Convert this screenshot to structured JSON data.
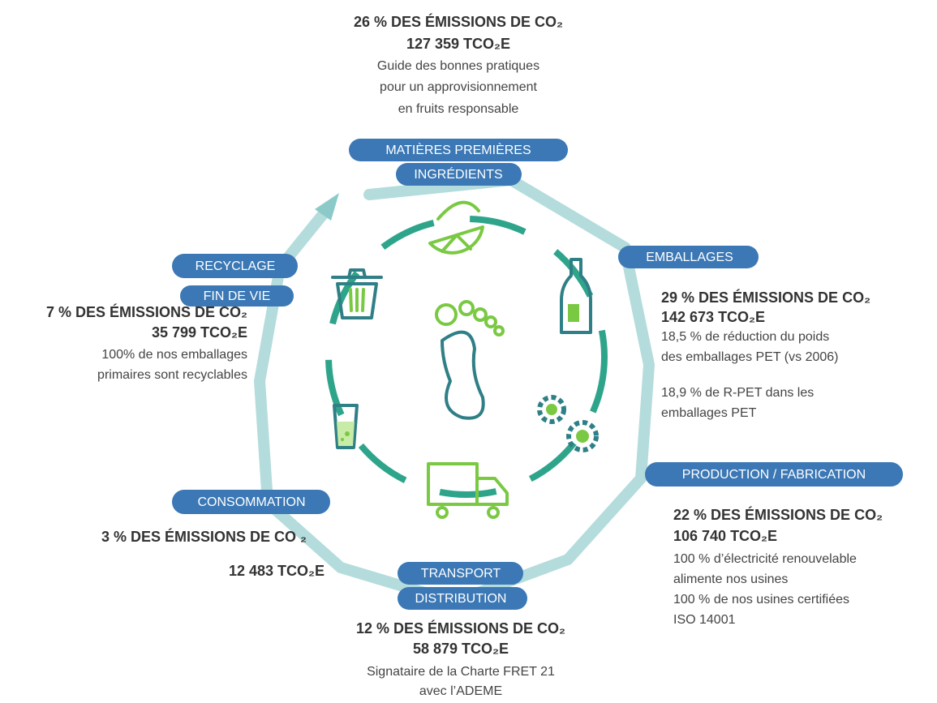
{
  "stages": [
    {
      "label": [
        "MATIÈRES PREMIÈRES",
        "INGRÉDIENTS"
      ],
      "share": "26 % DES ÉMISSIONS DE CO₂",
      "tonnes": "127 359 TCO₂E",
      "notes": [
        "Guide des bonnes pratiques",
        "pour un approvisionnement",
        "en fruits responsable"
      ]
    },
    {
      "label": [
        "EMBALLAGES"
      ],
      "share": "29 % DES ÉMISSIONS DE CO₂",
      "tonnes": "142 673 TCO₂E",
      "notes": [
        "18,5 % de réduction du poids",
        "des emballages PET (vs 2006)",
        "18,9 % de R-PET dans les",
        "emballages PET"
      ]
    },
    {
      "label": [
        "PRODUCTION / FABRICATION"
      ],
      "share": "22 % DES ÉMISSIONS DE CO₂",
      "tonnes": "106 740 TCO₂E",
      "notes": [
        "100 % d’électricité renouvelable",
        "alimente nos usines",
        "100 % de nos usines certifiées",
        "ISO 14001"
      ]
    },
    {
      "label": [
        "TRANSPORT",
        "DISTRIBUTION"
      ],
      "share": "12 % DES ÉMISSIONS DE CO₂",
      "tonnes": "58 879 TCO₂E",
      "notes": [
        "Signataire de la Charte FRET 21",
        "avec l’ADEME"
      ]
    },
    {
      "label": [
        "CONSOMMATION"
      ],
      "share": "3 % DES ÉMISSIONS DE CO ₂",
      "tonnes": "12 483 TCO₂E"
    },
    {
      "label": [
        "RECYCLAGE",
        "FIN DE VIE"
      ],
      "share": "7 % DES ÉMISSIONS DE CO₂",
      "tonnes": "35 799 TCO₂E",
      "notes": [
        "100% de nos emballages",
        "primaires sont recyclables"
      ]
    }
  ]
}
